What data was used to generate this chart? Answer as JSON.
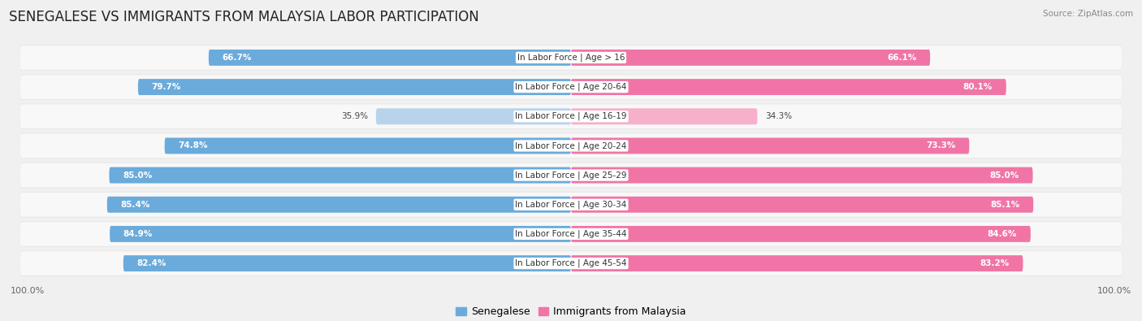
{
  "title": "SENEGALESE VS IMMIGRANTS FROM MALAYSIA LABOR PARTICIPATION",
  "source": "Source: ZipAtlas.com",
  "categories": [
    "In Labor Force | Age > 16",
    "In Labor Force | Age 20-64",
    "In Labor Force | Age 16-19",
    "In Labor Force | Age 20-24",
    "In Labor Force | Age 25-29",
    "In Labor Force | Age 30-34",
    "In Labor Force | Age 35-44",
    "In Labor Force | Age 45-54"
  ],
  "senegalese_values": [
    66.7,
    79.7,
    35.9,
    74.8,
    85.0,
    85.4,
    84.9,
    82.4
  ],
  "malaysia_values": [
    66.1,
    80.1,
    34.3,
    73.3,
    85.0,
    85.1,
    84.6,
    83.2
  ],
  "senegalese_colors": [
    "#6aabdb",
    "#6aabdb",
    "#b8d4ec",
    "#6aabdb",
    "#6aabdb",
    "#6aabdb",
    "#6aabdb",
    "#6aabdb"
  ],
  "malaysia_colors": [
    "#f075a6",
    "#f075a6",
    "#f7b0cc",
    "#f075a6",
    "#f075a6",
    "#f075a6",
    "#f075a6",
    "#f075a6"
  ],
  "row_bg_outer": "#e8e8e8",
  "row_bg_inner": "#f8f8f8",
  "background_color": "#f0f0f0",
  "legend_senegalese_color": "#6aabdb",
  "legend_malaysia_color": "#f075a6",
  "title_fontsize": 12,
  "label_fontsize": 7.5,
  "value_fontsize": 7.5,
  "legend_fontsize": 9,
  "axis_label_fontsize": 8,
  "max_value": 100.0
}
